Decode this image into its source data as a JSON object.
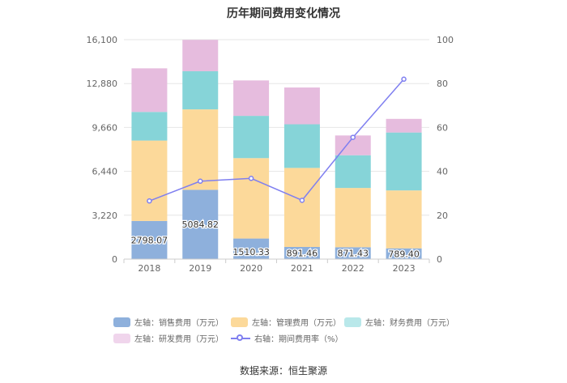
{
  "chart_data": {
    "type": "bar",
    "stacked": true,
    "title": "历年期间费用变化情况",
    "categories": [
      "2018",
      "2019",
      "2020",
      "2021",
      "2022",
      "2023"
    ],
    "left_axis": {
      "min": 0,
      "max": 16100,
      "ticks": [
        "0",
        "3,220",
        "6,440",
        "9,660",
        "12,880",
        "16,100"
      ]
    },
    "right_axis": {
      "min": 0,
      "max": 100,
      "ticks": [
        "0",
        "20",
        "40",
        "60",
        "80",
        "100"
      ]
    },
    "series": [
      {
        "name": "左轴：销售费用（万元）",
        "axis": "left",
        "color": "#8eb0dc",
        "values": [
          2798.07,
          5084.82,
          1510.33,
          891.46,
          871.43,
          789.4
        ],
        "labels": [
          "2798.07",
          "5084.82",
          "1510.33",
          "891.46",
          "871.43",
          "789.40"
        ]
      },
      {
        "name": "左轴：管理费用（万元）",
        "axis": "left",
        "color": "#fcd99a",
        "values": [
          5900,
          5900,
          5900,
          5800,
          4350,
          4250
        ]
      },
      {
        "name": "左轴：财务费用（万元）",
        "axis": "left",
        "color": "#86d4d8",
        "values": [
          2100,
          2800,
          3100,
          3200,
          2400,
          4250
        ]
      },
      {
        "name": "左轴：研发费用（万元）",
        "axis": "left",
        "color": "#e6bcde",
        "values": [
          3200,
          2300,
          2600,
          2700,
          1450,
          1000
        ]
      },
      {
        "name": "右轴：期间费用率（%）",
        "axis": "right",
        "type": "line",
        "color": "#7f7ff0",
        "values": [
          26.5,
          35.5,
          36.8,
          26.8,
          55.5,
          82.0
        ]
      }
    ],
    "legend": [
      {
        "label": "左轴：销售费用（万元）",
        "kind": "bar",
        "color": "#8eb0dc"
      },
      {
        "label": "左轴：管理费用（万元）",
        "kind": "bar",
        "color": "#fcd99a"
      },
      {
        "label": "左轴：财务费用（万元）",
        "kind": "bar",
        "color": "#b9e8ea"
      },
      {
        "label": "左轴：研发费用（万元）",
        "kind": "bar",
        "color": "#f0d5ec"
      },
      {
        "label": "右轴：期间费用率（%）",
        "kind": "line",
        "color": "#7f7ff0"
      }
    ],
    "source": "数据来源：恒生聚源"
  }
}
